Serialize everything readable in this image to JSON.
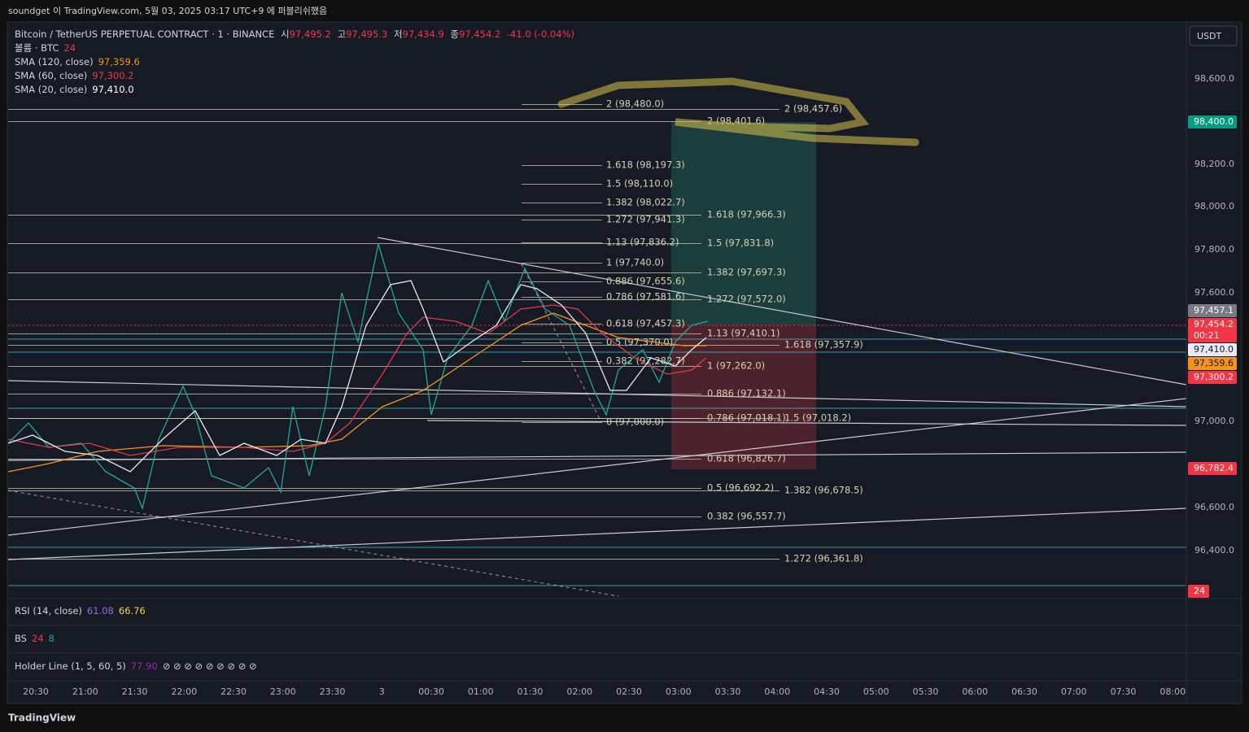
{
  "header": {
    "published": "soundget 이 TradingView.com, 5월 03, 2025 03:17 UTC+9 에 퍼블리쉬했음"
  },
  "symbol": {
    "name": "Bitcoin / TetherUS PERPETUAL CONTRACT · 1 · BINANCE",
    "open_label": "시",
    "open": "97,495.2",
    "high_label": "고",
    "high": "97,495.3",
    "low_label": "저",
    "low": "97,434.9",
    "close_label": "종",
    "close": "97,454.2",
    "change": "-41.0 (-0.04%)"
  },
  "legend": [
    {
      "name": "볼륨 · BTC",
      "value": "24"
    },
    {
      "name": "SMA (120, close)",
      "value": "97,359.6"
    },
    {
      "name": "SMA (60, close)",
      "value": "97,300.2"
    },
    {
      "name": "SMA (20, close)",
      "value": "97,410.0"
    }
  ],
  "currency_button": "USDT",
  "price_axis": [
    "98,600.0",
    "98,200.0",
    "98,000.0",
    "97,800.0",
    "97,600.0",
    "97,000.0",
    "96,600.0",
    "96,400.0"
  ],
  "price_badges": [
    "98,400.0",
    "97,457.1",
    "97,454.2",
    "00:21",
    "97,410.0",
    "97,359.6",
    "97,300.2",
    "96,782.4",
    "24"
  ],
  "time_axis": [
    "20:30",
    "21:00",
    "21:30",
    "22:00",
    "22:30",
    "23:00",
    "23:30",
    "3",
    "00:30",
    "01:00",
    "01:30",
    "02:00",
    "02:30",
    "03:00",
    "03:30",
    "04:00",
    "04:30",
    "05:00",
    "05:30",
    "06:00",
    "06:30",
    "07:00",
    "07:30",
    "08:00"
  ],
  "fib_a": [
    "2 (98,480.0)",
    "1.618 (98,197.3)",
    "1.5 (98,110.0)",
    "1.382 (98,022.7)",
    "1.272 (97,941.3)",
    "1.13 (97,836.2)",
    "1 (97,740.0)",
    "0.886 (97,655.6)",
    "0.786 (97,581.6)",
    "0.618 (97,457.3)",
    "0.5 (97,370.0)",
    "0.382 (97,282.7)",
    "0 (97,000.0)"
  ],
  "fib_b": [
    "2 (98,401.6)",
    "1.618 (97,966.3)",
    "1.5 (97,831.8)",
    "1.382 (97,697.3)",
    "1.272 (97,572.0)",
    "1.13 (97,410.1)",
    "1 (97,262.0)",
    "0.886 (97,132.1)",
    "0.786 (97,018.1)",
    "0.618 (96,826.7)",
    "0.5 (96,692.2)",
    "0.382 (96,557.7)"
  ],
  "fib_c": [
    "2 (98,457.6)",
    "1.618 (97,357.9)",
    "1.5 (97,018.2)",
    "1.382 (96,678.5)",
    "1.272 (96,361.8)"
  ],
  "panes": {
    "rsi": {
      "name": "RSI (14, close)",
      "v1": "61.08",
      "v2": "66.76"
    },
    "bs": {
      "name": "BS",
      "v1": "24",
      "v2": "8"
    },
    "holder": {
      "name": "Holder Line (1, 5, 60, 5)",
      "v1": "77.90",
      "symbols": "⊘ ⊘ ⊘ ⊘ ⊘ ⊘ ⊘ ⊘ ⊘"
    }
  },
  "footer": {
    "logo": "TradingView"
  }
}
